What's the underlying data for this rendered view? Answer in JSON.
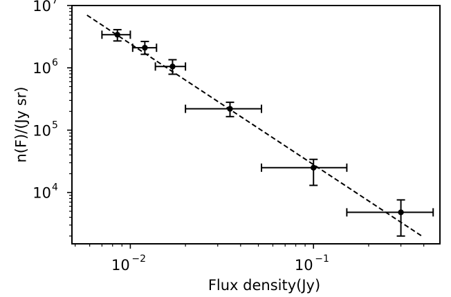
{
  "chart_data": {
    "type": "scatter",
    "title": "",
    "xlabel": "Flux density(Jy)",
    "ylabel": "n(F)/(Jy sr)",
    "xscale": "log",
    "yscale": "log",
    "xlim": [
      0.0048,
      0.49
    ],
    "ylim": [
      1500,
      10000000
    ],
    "grid": false,
    "legend": "none",
    "x_ticks": [
      {
        "base": "10",
        "exp": "−2",
        "value": 0.01
      },
      {
        "base": "10",
        "exp": "−1",
        "value": 0.1
      }
    ],
    "y_ticks": [
      {
        "base": "10",
        "exp": "4",
        "value": 10000
      },
      {
        "base": "10",
        "exp": "5",
        "value": 100000
      },
      {
        "base": "10",
        "exp": "6",
        "value": 1000000
      },
      {
        "base": "10",
        "exp": "7",
        "value": 10000000
      }
    ],
    "series": [
      {
        "style": "points-with-errorbars",
        "color": "#000000",
        "points": [
          {
            "x": 0.0085,
            "y": 3400000,
            "xerr": [
              0.007,
              0.01
            ],
            "yerr": [
              2700000,
              4100000
            ]
          },
          {
            "x": 0.012,
            "y": 2100000,
            "xerr": [
              0.0103,
              0.0139
            ],
            "yerr": [
              1650000,
              2650000
            ]
          },
          {
            "x": 0.017,
            "y": 1050000,
            "xerr": [
              0.0137,
              0.02
            ],
            "yerr": [
              790000,
              1350000
            ]
          },
          {
            "x": 0.035,
            "y": 220000,
            "xerr": [
              0.02,
              0.052
            ],
            "yerr": [
              165000,
              280000
            ]
          },
          {
            "x": 0.1,
            "y": 25000,
            "xerr": [
              0.052,
              0.152
            ],
            "yerr": [
              13000,
              34000
            ]
          },
          {
            "x": 0.3,
            "y": 4800,
            "xerr": [
              0.152,
              0.45
            ],
            "yerr": [
              2000,
              7600
            ]
          }
        ]
      },
      {
        "style": "dashed-line",
        "color": "#000000",
        "x": [
          0.0058,
          0.39
        ],
        "y": [
          7000000,
          2000
        ]
      }
    ]
  }
}
